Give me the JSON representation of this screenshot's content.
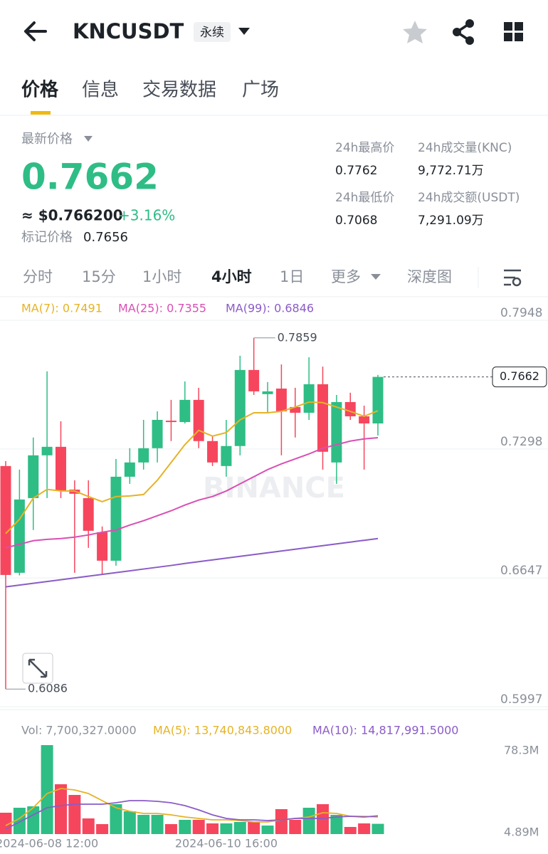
{
  "header": {
    "symbol": "KNCUSDT",
    "tag": "永续"
  },
  "tabs": [
    "价格",
    "信息",
    "交易数据",
    "广场"
  ],
  "price": {
    "label": "最新价格",
    "last": "0.7662",
    "usd": "≈ $0.766200",
    "change": "+3.16%",
    "mark_label": "标记价格",
    "mark": "0.7656"
  },
  "stats": [
    {
      "label": "24h最高价",
      "value": "0.7762"
    },
    {
      "label": "24h成交量(KNC)",
      "value": "9,772.71万"
    },
    {
      "label": "24h最低价",
      "value": "0.7068"
    },
    {
      "label": "24h成交额(USDT)",
      "value": "7,291.09万"
    }
  ],
  "intervals": [
    "分时",
    "15分",
    "1小时",
    "4小时",
    "1日",
    "更多",
    "深度图"
  ],
  "chart_data": {
    "type": "candlestick",
    "watermark": "BINANCE",
    "categories": [
      null,
      null,
      null,
      "2024-06-08 12:00",
      null,
      null,
      null,
      null,
      null,
      null,
      null,
      null,
      null,
      null,
      null,
      null,
      "2024-06-10 16:00",
      null,
      null,
      null,
      null,
      null,
      null,
      null,
      null,
      null,
      null,
      null
    ],
    "up_color": "#2ebd85",
    "down_color": "#f6465d",
    "candles": {
      "open": [
        0.7212,
        0.6673,
        0.705,
        0.7266,
        0.7309,
        0.7093,
        0.705,
        0.6878,
        0.6734,
        0.7158,
        0.723,
        0.7302,
        0.7441,
        0.7434,
        0.7546,
        0.7338,
        0.7212,
        0.7313,
        0.7697,
        0.7575,
        0.7603,
        0.751,
        0.7481,
        0.7625,
        0.723,
        0.7535,
        0.7463,
        0.7427
      ],
      "high": [
        0.7237,
        0.7194,
        0.7356,
        0.769,
        0.7438,
        0.714,
        0.714,
        0.6907,
        0.7248,
        0.7302,
        0.7445,
        0.7488,
        0.7546,
        0.7639,
        0.7607,
        0.7366,
        0.7445,
        0.7769,
        0.7859,
        0.7636,
        0.7725,
        0.7607,
        0.7761,
        0.7714,
        0.7571,
        0.7582,
        0.7517,
        0.7672
      ],
      "low": [
        0.6086,
        0.666,
        0.6889,
        0.705,
        0.705,
        0.6673,
        0.6799,
        0.6663,
        0.6709,
        0.7122,
        0.7194,
        0.723,
        0.7338,
        0.7427,
        0.7302,
        0.7212,
        0.7158,
        0.7266,
        0.7571,
        0.7481,
        0.7266,
        0.7356,
        0.7445,
        0.7194,
        0.7122,
        0.7445,
        0.7194,
        0.7366
      ],
      "close": [
        0.6662,
        0.7043,
        0.7266,
        0.7309,
        0.7086,
        0.7072,
        0.6885,
        0.6734,
        0.7158,
        0.723,
        0.7302,
        0.7445,
        0.7434,
        0.7546,
        0.7338,
        0.723,
        0.7313,
        0.7697,
        0.7589,
        0.7589,
        0.7488,
        0.7481,
        0.7625,
        0.7284,
        0.7535,
        0.7463,
        0.7427,
        0.7662
      ]
    },
    "ma": [
      {
        "label": "MA(7): 0.7491",
        "color": "#e6b325",
        "values": [
          0.6871,
          0.6943,
          0.705,
          0.7094,
          0.7086,
          0.7086,
          0.7058,
          0.7032,
          0.7058,
          0.7061,
          0.7068,
          0.714,
          0.723,
          0.732,
          0.7392,
          0.7363,
          0.7381,
          0.7445,
          0.7481,
          0.7481,
          0.7488,
          0.751,
          0.7535,
          0.7532,
          0.751,
          0.7488,
          0.7463,
          0.7491
        ]
      },
      {
        "label": "MA(25): 0.7355",
        "color": "#d94fb4",
        "values": [
          0.6799,
          0.6817,
          0.6835,
          0.6842,
          0.6846,
          0.6853,
          0.6864,
          0.6878,
          0.6889,
          0.6914,
          0.6936,
          0.6961,
          0.6986,
          0.7015,
          0.704,
          0.7058,
          0.7086,
          0.7122,
          0.7158,
          0.7194,
          0.7223,
          0.7248,
          0.7273,
          0.7302,
          0.732,
          0.7338,
          0.7349,
          0.7355
        ]
      },
      {
        "label": "MA(99): 0.6846",
        "color": "#8a5cc7",
        "values": [
          0.6602,
          0.6611,
          0.662,
          0.6629,
          0.6638,
          0.6647,
          0.6656,
          0.6665,
          0.6674,
          0.6683,
          0.6692,
          0.6701,
          0.671,
          0.672,
          0.6729,
          0.6738,
          0.6747,
          0.6756,
          0.6765,
          0.6774,
          0.6783,
          0.6792,
          0.6801,
          0.681,
          0.6819,
          0.6828,
          0.6837,
          0.6846
        ]
      }
    ],
    "ylim": [
      0.5997,
      0.7948
    ],
    "yticks": [
      0.7948,
      0.7298,
      0.6647,
      0.5997
    ],
    "grid": true,
    "volume": {
      "label": "Vol: 7,700,327.0000",
      "values": [
        17.66,
        22.12,
        23.4,
        78.3,
        43.19,
        33.61,
        12.55,
        7.44,
        25.32,
        18.93,
        15.74,
        15.74,
        7.44,
        11.27,
        11.27,
        8.08,
        8.08,
        9.36,
        9.36,
        6.17,
        20.85,
        11.27,
        22.12,
        25.32,
        15.74,
        4.89,
        8.08,
        7.7
      ],
      "ylim": [
        4.89,
        78.3
      ],
      "yticks": [
        {
          "value": 78.3,
          "label": "78.3M"
        },
        {
          "value": 4.89,
          "label": "4.89M"
        }
      ],
      "ma": [
        {
          "label": "MA(5): 13,740,843.8000",
          "color": "#e6b325",
          "values": [
            6.17,
            12.55,
            22.12,
            34.89,
            39.36,
            38.08,
            34.89,
            28.51,
            22.12,
            18.93,
            17.02,
            17.02,
            15.74,
            13.83,
            12.55,
            11.27,
            11.27,
            10.63,
            9.36,
            9.36,
            11.27,
            12.55,
            13.83,
            17.66,
            17.02,
            14.46,
            14.46,
            13.74
          ]
        },
        {
          "label": "MA(10): 14,817,991.5000",
          "color": "#8a5cc7",
          "values": [
            2.98,
            9.36,
            15.74,
            22.12,
            24.04,
            25.32,
            25.32,
            25.32,
            26.59,
            28.51,
            28.51,
            27.87,
            26.59,
            24.04,
            20.21,
            15.74,
            12.55,
            11.27,
            11.27,
            10.63,
            11.27,
            12.55,
            12.55,
            12.55,
            13.83,
            14.46,
            13.83,
            14.82
          ]
        }
      ]
    }
  }
}
